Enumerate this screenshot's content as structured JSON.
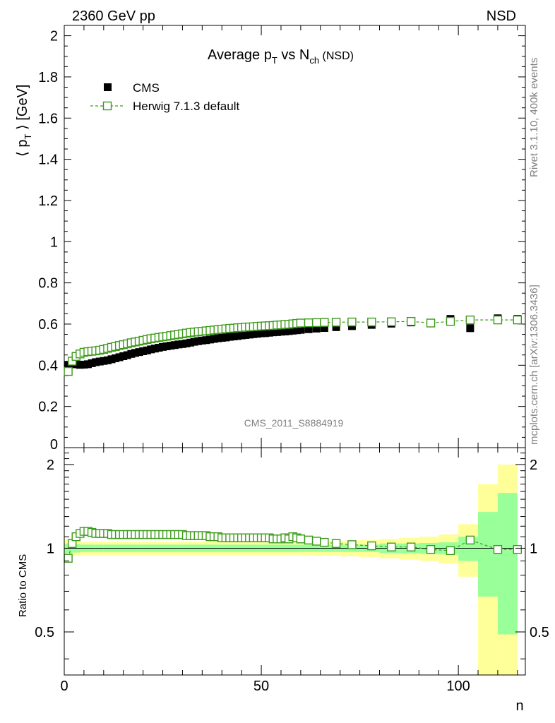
{
  "header": {
    "left": "2360 GeV pp",
    "right": "NSD"
  },
  "side_text": {
    "rivet": "Rivet 3.1.10,  400k events",
    "mcplots": "mcplots.cern.ch [arXiv:1306.3436]"
  },
  "watermark": "CMS_2011_S8884919",
  "legend": {
    "cms": "CMS",
    "herwig": "Herwig 7.1.3 default"
  },
  "colors": {
    "data": "#000000",
    "mc": "#3c9a1a",
    "band_inner": "#99ff99",
    "band_outer": "#ffff99"
  },
  "chart_data": [
    {
      "type": "scatter",
      "title_main": "Average p",
      "title_sub_T": "T",
      "title_mid": " vs N",
      "title_sub_ch": "ch",
      "title_tail": " (NSD)",
      "ylabel": "⟨ p_T ⟩ [GeV]",
      "xlabel": "n",
      "xlim": [
        0,
        117
      ],
      "ylim": [
        0,
        2.05
      ],
      "yticks": [
        0,
        0.2,
        0.4,
        0.6,
        0.8,
        1,
        1.2,
        1.4,
        1.6,
        1.8,
        2
      ],
      "ytick_labels": [
        "0",
        "0.2",
        "0.4",
        "0.6",
        "0.8",
        "1",
        "1.2",
        "1.4",
        "1.6",
        "1.8",
        "2"
      ],
      "series": [
        {
          "name": "CMS",
          "marker": "filled-square",
          "x": [
            1,
            2,
            3,
            4,
            5,
            6,
            7,
            8,
            9,
            10,
            11,
            12,
            13,
            14,
            15,
            16,
            17,
            18,
            19,
            20,
            21,
            22,
            23,
            24,
            25,
            26,
            27,
            28,
            29,
            30,
            31,
            32,
            33,
            34,
            35,
            36,
            37,
            38,
            39,
            40,
            41,
            42,
            43,
            44,
            45,
            46,
            47,
            48,
            49,
            50,
            51,
            52,
            53,
            54,
            55,
            56,
            57,
            58,
            59,
            60,
            62,
            64,
            66,
            69,
            73,
            78,
            83,
            88,
            93,
            98,
            103,
            110,
            115
          ],
          "y": [
            0.402,
            0.405,
            0.405,
            0.402,
            0.403,
            0.405,
            0.41,
            0.415,
            0.418,
            0.421,
            0.424,
            0.429,
            0.434,
            0.439,
            0.444,
            0.449,
            0.455,
            0.46,
            0.464,
            0.468,
            0.472,
            0.477,
            0.481,
            0.485,
            0.489,
            0.492,
            0.495,
            0.498,
            0.501,
            0.503,
            0.506,
            0.51,
            0.514,
            0.517,
            0.52,
            0.522,
            0.525,
            0.528,
            0.531,
            0.533,
            0.535,
            0.538,
            0.54,
            0.542,
            0.545,
            0.547,
            0.549,
            0.551,
            0.553,
            0.555,
            0.556,
            0.558,
            0.56,
            0.561,
            0.563,
            0.564,
            0.566,
            0.568,
            0.57,
            0.572,
            0.575,
            0.578,
            0.581,
            0.585,
            0.59,
            0.596,
            0.602,
            0.608,
            0.605,
            0.625,
            0.58,
            0.628,
            0.625
          ]
        },
        {
          "name": "Herwig 7.1.3 default",
          "marker": "open-square",
          "x": [
            1,
            2,
            3,
            4,
            5,
            6,
            7,
            8,
            9,
            10,
            11,
            12,
            13,
            14,
            15,
            16,
            17,
            18,
            19,
            20,
            21,
            22,
            23,
            24,
            25,
            26,
            27,
            28,
            29,
            30,
            31,
            32,
            33,
            34,
            35,
            36,
            37,
            38,
            39,
            40,
            41,
            42,
            43,
            44,
            45,
            46,
            47,
            48,
            49,
            50,
            51,
            52,
            53,
            54,
            55,
            56,
            57,
            58,
            59,
            60,
            62,
            64,
            66,
            69,
            73,
            78,
            83,
            88,
            93,
            98,
            103,
            110,
            115
          ],
          "y": [
            0.37,
            0.42,
            0.443,
            0.455,
            0.463,
            0.466,
            0.468,
            0.47,
            0.473,
            0.477,
            0.482,
            0.487,
            0.491,
            0.496,
            0.5,
            0.504,
            0.509,
            0.513,
            0.517,
            0.521,
            0.525,
            0.529,
            0.532,
            0.535,
            0.538,
            0.541,
            0.544,
            0.547,
            0.55,
            0.553,
            0.556,
            0.559,
            0.561,
            0.563,
            0.565,
            0.567,
            0.569,
            0.571,
            0.573,
            0.575,
            0.577,
            0.579,
            0.58,
            0.582,
            0.583,
            0.585,
            0.586,
            0.587,
            0.589,
            0.59,
            0.591,
            0.592,
            0.593,
            0.595,
            0.596,
            0.598,
            0.599,
            0.601,
            0.603,
            0.605,
            0.606,
            0.607,
            0.608,
            0.609,
            0.61,
            0.61,
            0.611,
            0.613,
            0.605,
            0.613,
            0.62,
            0.62,
            0.62
          ]
        }
      ]
    },
    {
      "type": "scatter",
      "ylabel": "Ratio to CMS",
      "xlabel": "n",
      "xlim": [
        0,
        117
      ],
      "ylim": [
        0.35,
        2.3
      ],
      "yscale": "log",
      "yticks": [
        0.5,
        1,
        2
      ],
      "ytick_labels": [
        "0.5",
        "1",
        "2"
      ],
      "xticks": [
        0,
        50,
        100
      ],
      "xtick_labels": [
        "0",
        "50",
        "100"
      ],
      "bands": {
        "edges": [
          0,
          2,
          4,
          6,
          8,
          10,
          20,
          30,
          40,
          50,
          55,
          60,
          65,
          70,
          75,
          80,
          85,
          90,
          95,
          100,
          105,
          110,
          115
        ],
        "inner_lo": [
          0.96,
          0.965,
          0.97,
          0.97,
          0.97,
          0.97,
          0.97,
          0.97,
          0.97,
          0.97,
          0.97,
          0.97,
          0.97,
          0.97,
          0.97,
          0.96,
          0.96,
          0.955,
          0.95,
          0.9,
          0.67,
          0.49
        ],
        "inner_hi": [
          1.04,
          1.035,
          1.03,
          1.03,
          1.03,
          1.03,
          1.03,
          1.03,
          1.03,
          1.03,
          1.03,
          1.03,
          1.03,
          1.03,
          1.03,
          1.04,
          1.04,
          1.045,
          1.05,
          1.1,
          1.35,
          1.58
        ],
        "outer_lo": [
          0.93,
          0.94,
          0.945,
          0.945,
          0.945,
          0.945,
          0.945,
          0.945,
          0.945,
          0.945,
          0.945,
          0.94,
          0.94,
          0.935,
          0.93,
          0.92,
          0.91,
          0.9,
          0.88,
          0.79,
          0.3,
          0.3
        ],
        "outer_hi": [
          1.08,
          1.06,
          1.055,
          1.055,
          1.055,
          1.055,
          1.055,
          1.055,
          1.055,
          1.055,
          1.055,
          1.06,
          1.06,
          1.065,
          1.07,
          1.08,
          1.09,
          1.1,
          1.12,
          1.22,
          1.7,
          2.0
        ]
      },
      "series": [
        {
          "name": "Herwig 7.1.3 default",
          "x": [
            1,
            2,
            3,
            4,
            5,
            6,
            7,
            8,
            9,
            10,
            11,
            12,
            13,
            14,
            15,
            16,
            17,
            18,
            19,
            20,
            21,
            22,
            23,
            24,
            25,
            26,
            27,
            28,
            29,
            30,
            31,
            32,
            33,
            34,
            35,
            36,
            37,
            38,
            39,
            40,
            41,
            42,
            43,
            44,
            45,
            46,
            47,
            48,
            49,
            50,
            51,
            52,
            53,
            54,
            55,
            56,
            57,
            58,
            59,
            60,
            62,
            64,
            66,
            69,
            73,
            78,
            83,
            88,
            93,
            98,
            103,
            110,
            115
          ],
          "y": [
            0.92,
            1.04,
            1.1,
            1.13,
            1.15,
            1.15,
            1.14,
            1.13,
            1.13,
            1.13,
            1.13,
            1.12,
            1.12,
            1.12,
            1.12,
            1.12,
            1.12,
            1.12,
            1.12,
            1.12,
            1.12,
            1.12,
            1.12,
            1.12,
            1.12,
            1.12,
            1.12,
            1.12,
            1.12,
            1.12,
            1.11,
            1.11,
            1.11,
            1.11,
            1.11,
            1.11,
            1.1,
            1.1,
            1.1,
            1.09,
            1.09,
            1.09,
            1.09,
            1.09,
            1.09,
            1.09,
            1.09,
            1.09,
            1.09,
            1.09,
            1.09,
            1.09,
            1.08,
            1.08,
            1.08,
            1.09,
            1.08,
            1.1,
            1.09,
            1.08,
            1.07,
            1.06,
            1.05,
            1.04,
            1.03,
            1.02,
            1.01,
            1.01,
            0.99,
            0.98,
            1.07,
            0.99,
            0.99
          ]
        }
      ]
    }
  ]
}
